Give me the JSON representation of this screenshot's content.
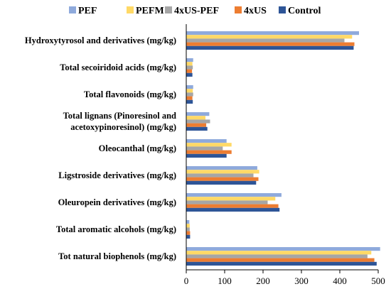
{
  "chart_data": {
    "type": "bar",
    "orientation": "horizontal",
    "categories": [
      [
        "Hydroxytyrosol and derivatives (mg/kg)"
      ],
      [
        "Total secoiridoid acids (mg/kg)"
      ],
      [
        "Total flavonoids (mg/kg)"
      ],
      [
        "Total lignans (Pinoresinol and",
        "acetoxypinoresinol) (mg/kg)"
      ],
      [
        "Oleocanthal (mg/kg)"
      ],
      [
        "Ligstroside derivatives (mg/kg)"
      ],
      [
        "Oleuropein derivatives (mg/kg)"
      ],
      [
        "Total aromatic alcohols (mg/kg)"
      ],
      [
        "Tot natural biophenols (mg/kg)"
      ]
    ],
    "series": [
      {
        "name": "PEF",
        "color": "#8faadc",
        "values": [
          450,
          18,
          18,
          60,
          105,
          185,
          248,
          8,
          505
        ]
      },
      {
        "name": "PEFM",
        "color": "#ffd966",
        "values": [
          432,
          16,
          17,
          50,
          118,
          190,
          232,
          9,
          482
        ]
      },
      {
        "name": "4xUS-PEF",
        "color": "#a6a6a6",
        "values": [
          412,
          17,
          18,
          62,
          95,
          175,
          212,
          9,
          472
        ]
      },
      {
        "name": "4xUS",
        "color": "#ed7d31",
        "values": [
          438,
          15,
          16,
          52,
          118,
          188,
          240,
          10,
          490
        ]
      },
      {
        "name": "Control",
        "color": "#2e5597",
        "values": [
          436,
          16,
          17,
          55,
          105,
          182,
          243,
          10,
          496
        ]
      }
    ],
    "xlim": [
      0,
      500
    ],
    "xticks": [
      0,
      100,
      200,
      300,
      400,
      500
    ],
    "grid": false,
    "legend": "top"
  }
}
